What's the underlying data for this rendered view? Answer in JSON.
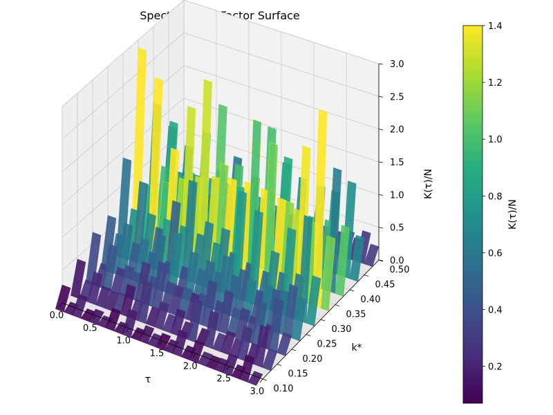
{
  "chart_data": {
    "type": "surface3d",
    "title": "Spectral Form Factor Surface",
    "xlabel": "τ",
    "ylabel": "k*",
    "zlabel": "K(τ)/N",
    "xlim": [
      0.0,
      3.0
    ],
    "ylim": [
      0.1,
      0.5
    ],
    "zlim": [
      0.0,
      3.0
    ],
    "x_ticks": [
      "0.0",
      "0.5",
      "1.0",
      "1.5",
      "2.0",
      "2.5",
      "3.0"
    ],
    "y_ticks": [
      "0.10",
      "0.15",
      "0.20",
      "0.25",
      "0.30",
      "0.35",
      "0.40",
      "0.45",
      "0.50"
    ],
    "z_ticks": [
      "0.0",
      "0.5",
      "1.0",
      "1.5",
      "2.0",
      "2.5",
      "3.0"
    ],
    "grid": true,
    "colormap": "viridis",
    "colorbar": {
      "label": "K(τ)/N",
      "range": [
        0.07,
        1.4
      ],
      "ticks": [
        "0.2",
        "0.4",
        "0.6",
        "0.8",
        "1.0",
        "1.2",
        "1.4"
      ]
    },
    "series": [
      {
        "k": 0.1,
        "level": 0.08,
        "peak": 0.3
      },
      {
        "k": 0.15,
        "level": 0.2,
        "peak": 0.55
      },
      {
        "k": 0.2,
        "level": 0.35,
        "peak": 0.7
      },
      {
        "k": 0.25,
        "level": 0.55,
        "peak": 0.85
      },
      {
        "k": 0.3,
        "level": 0.7,
        "peak": 1.6
      },
      {
        "k": 0.35,
        "level": 1.4,
        "peak": 3.0
      },
      {
        "k": 0.4,
        "level": 0.95,
        "peak": 2.2
      },
      {
        "k": 0.45,
        "level": 0.7,
        "peak": 1.4
      },
      {
        "k": 0.5,
        "level": 0.25,
        "peak": 0.4
      }
    ]
  }
}
